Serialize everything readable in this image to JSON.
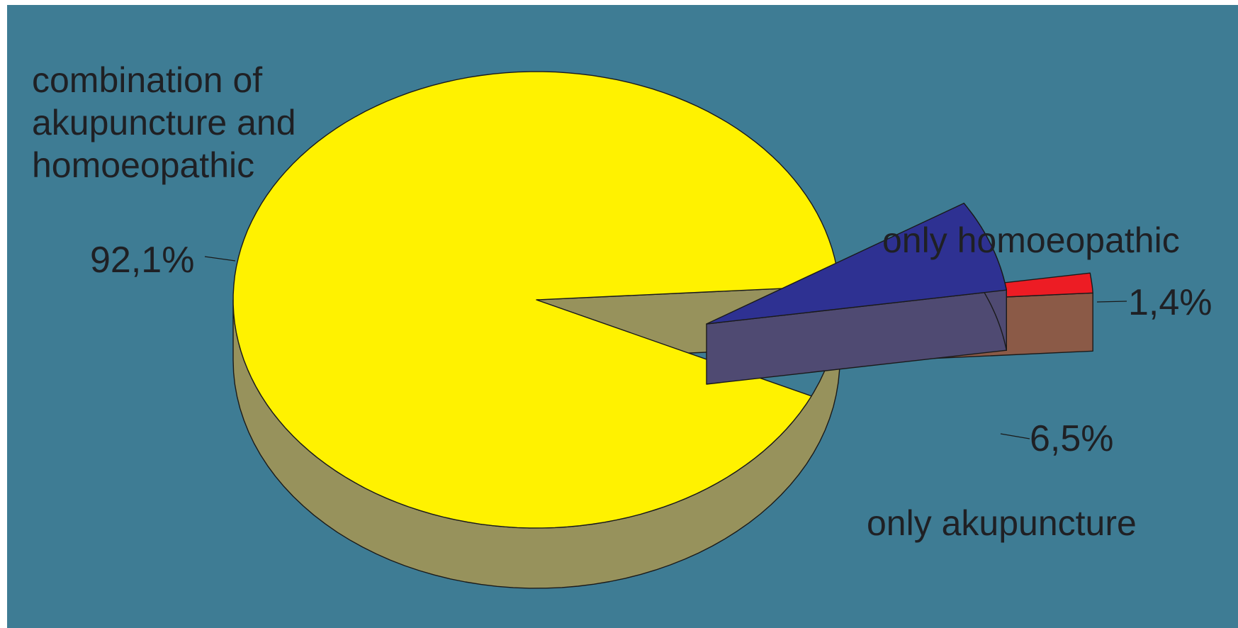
{
  "chart_data": {
    "type": "pie",
    "style": "3d-exploded",
    "title": "",
    "slices": [
      {
        "key": "combo",
        "label_lines": [
          "combination of",
          "akupuncture and",
          "homoeopathic"
        ],
        "value": 92.1,
        "value_label": "92,1%",
        "color": "#FFF200",
        "side_color": "#97925C"
      },
      {
        "key": "homoeo",
        "label_lines": [
          "only homoeopathic"
        ],
        "value": 1.4,
        "value_label": "1,4%",
        "color": "#ED1C24",
        "side_color": "#8B5A47"
      },
      {
        "key": "aku",
        "label_lines": [
          "only akupuncture"
        ],
        "value": 6.5,
        "value_label": "6,5%",
        "color": "#2E3192",
        "side_color": "#4F4A72"
      }
    ]
  },
  "colors": {
    "background": "#3E7C94",
    "outline": "#1a1a1a",
    "text": "#1f2024"
  }
}
